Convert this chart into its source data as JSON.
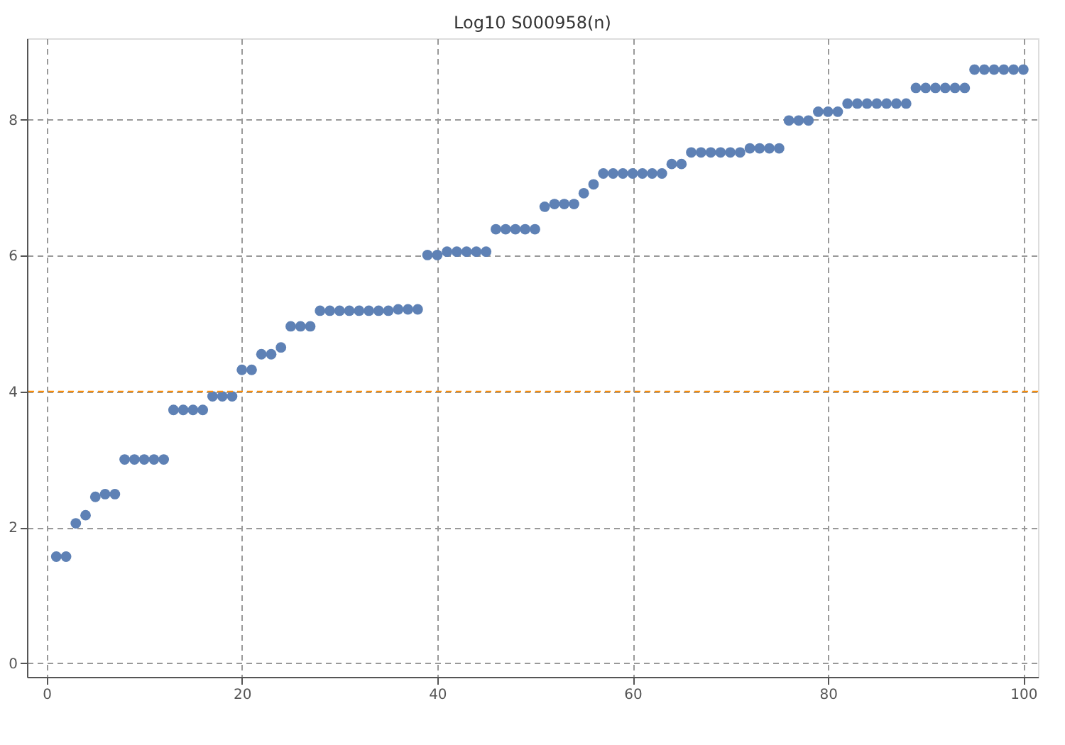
{
  "chart_data": {
    "type": "scatter",
    "title": "Log10 S000958(n)",
    "x": [
      1,
      2,
      3,
      4,
      5,
      6,
      7,
      8,
      9,
      10,
      11,
      12,
      13,
      14,
      15,
      16,
      17,
      18,
      19,
      20,
      21,
      22,
      23,
      24,
      25,
      26,
      27,
      28,
      29,
      30,
      31,
      32,
      33,
      34,
      35,
      36,
      37,
      38,
      39,
      40,
      41,
      42,
      43,
      44,
      45,
      46,
      47,
      48,
      49,
      50,
      51,
      52,
      53,
      54,
      55,
      56,
      57,
      58,
      59,
      60,
      61,
      62,
      63,
      64,
      65,
      66,
      67,
      68,
      69,
      70,
      71,
      72,
      73,
      74,
      75,
      76,
      77,
      78,
      79,
      80,
      81,
      82,
      83,
      84,
      85,
      86,
      87,
      88,
      89,
      90,
      91,
      92,
      93,
      94,
      95,
      96,
      97,
      98,
      99,
      100
    ],
    "series": [
      {
        "color": "#5e81b5",
        "values": [
          1.57,
          1.57,
          2.06,
          2.18,
          2.45,
          2.49,
          2.49,
          3.0,
          3.0,
          3.0,
          3.0,
          3.0,
          3.73,
          3.73,
          3.73,
          3.73,
          3.93,
          3.93,
          3.93,
          4.32,
          4.32,
          4.55,
          4.55,
          4.65,
          4.96,
          4.96,
          4.96,
          5.19,
          5.19,
          5.19,
          5.19,
          5.19,
          5.19,
          5.19,
          5.19,
          5.21,
          5.21,
          5.21,
          6.01,
          6.01,
          6.06,
          6.06,
          6.06,
          6.06,
          6.06,
          6.39,
          6.39,
          6.39,
          6.39,
          6.39,
          6.72,
          6.76,
          6.76,
          6.76,
          6.92,
          7.05,
          7.21,
          7.21,
          7.21,
          7.21,
          7.21,
          7.21,
          7.21,
          7.35,
          7.35,
          7.52,
          7.52,
          7.52,
          7.52,
          7.52,
          7.52,
          7.58,
          7.58,
          7.58,
          7.58,
          7.99,
          7.99,
          7.99,
          8.12,
          8.12,
          8.12,
          8.24,
          8.24,
          8.24,
          8.24,
          8.24,
          8.24,
          8.24,
          8.47,
          8.47,
          8.47,
          8.47,
          8.47,
          8.47,
          8.74,
          8.74,
          8.74,
          8.74,
          8.74,
          8.74
        ]
      }
    ],
    "xlim": [
      -2,
      101.5
    ],
    "ylim": [
      -0.2,
      9.2
    ],
    "xticks": [
      0,
      20,
      40,
      60,
      80,
      100
    ],
    "yticks": [
      0,
      2,
      4,
      6,
      8
    ],
    "grid": true,
    "marker": "circle",
    "ref_lines": [
      {
        "axis": "y",
        "value": 4,
        "color": "#ff8c00",
        "line_style": "dashed"
      }
    ]
  }
}
